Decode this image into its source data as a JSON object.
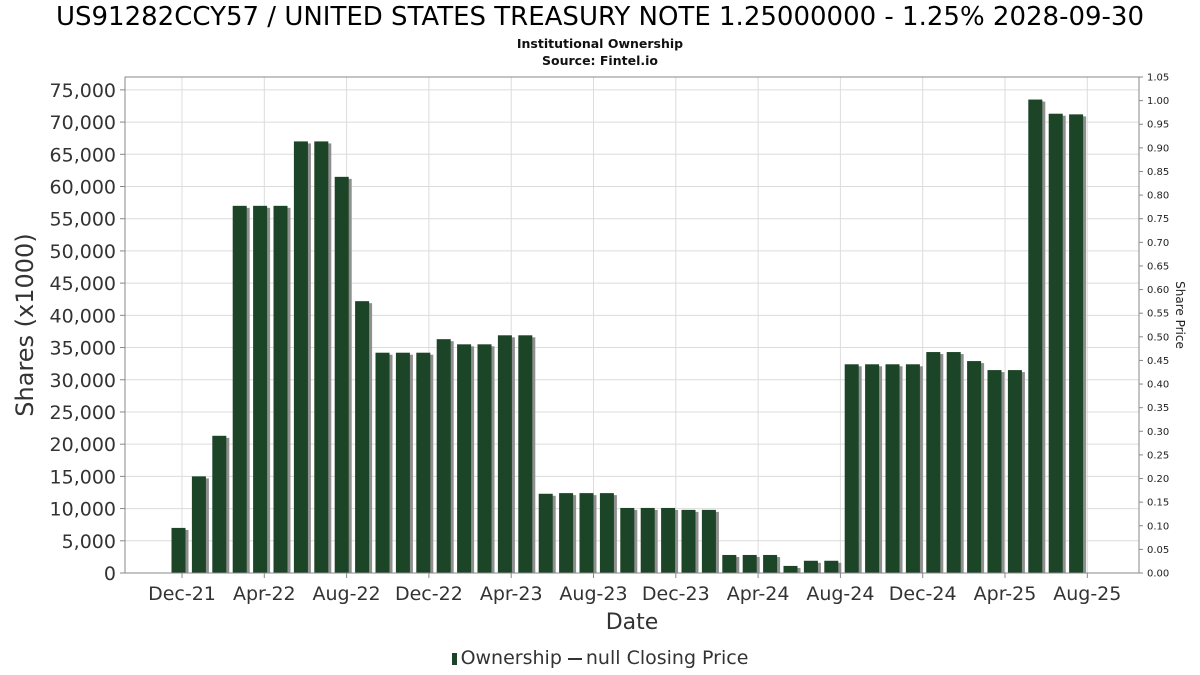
{
  "header": {
    "title": "US91282CCY57 / UNITED STATES TREASURY NOTE 1.25000000 - 1.25% 2028-09-30",
    "subtitle": "Institutional Ownership",
    "source": "Source: Fintel.io"
  },
  "legend": {
    "ownership_label": "Ownership",
    "price_label": "null Closing Price"
  },
  "colors": {
    "bar": "#1c4426",
    "bar_shadow": "#8f8f8f",
    "grid": "#dcdcdc",
    "axis": "#888888"
  },
  "chart_data": {
    "type": "bar",
    "title": "US91282CCY57 / UNITED STATES TREASURY NOTE 1.25000000 - 1.25% 2028-09-30",
    "subtitle": "Institutional Ownership",
    "xlabel": "Date",
    "ylabel": "Shares (x1000)",
    "y2label": "Share Price",
    "ylim": [
      0,
      77000
    ],
    "y2lim": [
      0,
      1.05
    ],
    "grid": true,
    "legend_position": "bottom",
    "x_ticks": [
      "Dec-21",
      "Apr-22",
      "Aug-22",
      "Dec-22",
      "Apr-23",
      "Aug-23",
      "Dec-23",
      "Apr-24",
      "Aug-24",
      "Dec-24",
      "Apr-25",
      "Aug-25"
    ],
    "y_ticks": [
      "0",
      "5,000",
      "10,000",
      "15,000",
      "20,000",
      "25,000",
      "30,000",
      "35,000",
      "40,000",
      "45,000",
      "50,000",
      "55,000",
      "60,000",
      "65,000",
      "70,000",
      "75,000"
    ],
    "y2_ticks": [
      "0.00",
      "0.05",
      "0.10",
      "0.15",
      "0.20",
      "0.25",
      "0.30",
      "0.35",
      "0.40",
      "0.45",
      "0.50",
      "0.55",
      "0.60",
      "0.65",
      "0.70",
      "0.75",
      "0.80",
      "0.85",
      "0.90",
      "0.95",
      "1.00",
      "1.05"
    ],
    "series": [
      {
        "name": "Ownership",
        "values": [
          7000,
          15000,
          21300,
          57000,
          57000,
          57000,
          67000,
          67000,
          61500,
          42200,
          34200,
          34200,
          34200,
          36300,
          35500,
          35500,
          36900,
          36900,
          12300,
          12400,
          12400,
          12400,
          10100,
          10100,
          10100,
          9800,
          9800,
          2800,
          2800,
          2800,
          1100,
          1900,
          1900,
          32400,
          32400,
          32400,
          32400,
          34300,
          34300,
          32900,
          31500,
          31500,
          73500,
          71300,
          71200
        ]
      }
    ]
  }
}
